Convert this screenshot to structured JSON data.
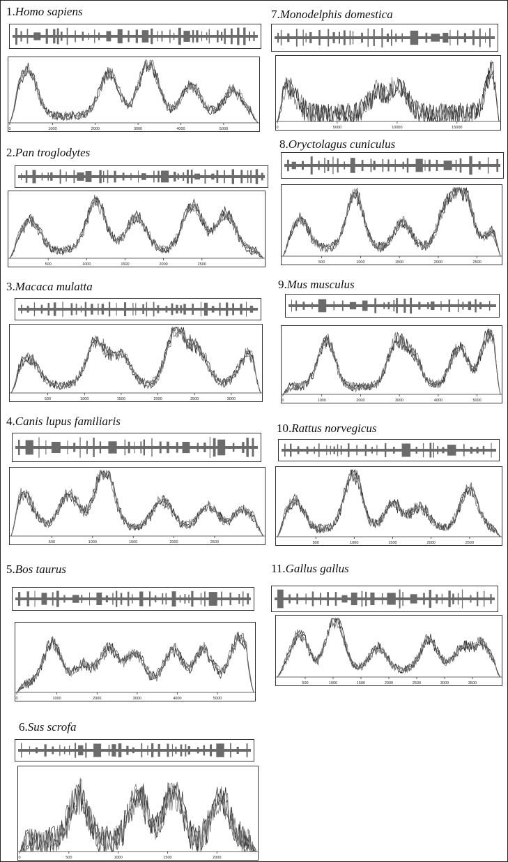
{
  "figure": {
    "panels": [
      {
        "number": "1.",
        "species": "Homo sapiens",
        "ticks": [
          "0",
          "1000",
          "2000",
          "3000",
          "4000",
          "5000"
        ]
      },
      {
        "number": "2.",
        "species": "Pan troglodytes",
        "ticks": [
          "500",
          "1000",
          "1500",
          "2000",
          "2500"
        ]
      },
      {
        "number": "3.",
        "species": "Macaca mulatta",
        "ticks": [
          "500",
          "1000",
          "1500",
          "2000",
          "2500",
          "3000"
        ]
      },
      {
        "number": "4.",
        "species": "Canis lupus familiaris",
        "ticks": [
          "500",
          "1000",
          "1500",
          "2000",
          "2500"
        ]
      },
      {
        "number": "5.",
        "species": "Bos taurus",
        "ticks": [
          "0",
          "1000",
          "2000",
          "3000",
          "4000",
          "5000"
        ]
      },
      {
        "number": "6.",
        "species": "Sus scrofa",
        "ticks": [
          "0",
          "500",
          "1000",
          "1500",
          "2000"
        ]
      },
      {
        "number": "7.",
        "species": "Monodelphis domestica",
        "ticks": [
          "0",
          "5000",
          "10000",
          "15000"
        ]
      },
      {
        "number": "8.",
        "species": "Oryctolagus cuniculus",
        "ticks": [
          "500",
          "1000",
          "1500",
          "2000",
          "2500"
        ]
      },
      {
        "number": "9.",
        "species": "Mus musculus",
        "ticks": [
          "0",
          "1000",
          "2000",
          "3000",
          "4000",
          "5000"
        ]
      },
      {
        "number": "10.",
        "species": "Rattus norvegicus",
        "ticks": [
          "500",
          "1000",
          "1500",
          "2000",
          "2500"
        ]
      },
      {
        "number": "11.",
        "species": "Gallus gallus",
        "ticks": [
          "500",
          "1000",
          "1500",
          "2000",
          "2500",
          "3000",
          "3500"
        ]
      }
    ]
  },
  "chart_data": {
    "type": "line",
    "grid": false,
    "colors": {
      "trace": "#333333",
      "bars": "#6b6b6b",
      "axis": "#333333"
    },
    "panels": [
      {
        "species": "Homo sapiens",
        "xlim": [
          0,
          5800
        ],
        "x_ticks": [
          0,
          1000,
          2000,
          3000,
          4000,
          5000
        ],
        "traces": 4,
        "profile_peaks": [
          [
            0.07,
            0.75
          ],
          [
            0.4,
            0.7
          ],
          [
            0.56,
            0.9
          ],
          [
            0.73,
            0.5
          ],
          [
            0.9,
            0.42
          ]
        ]
      },
      {
        "species": "Pan troglodytes",
        "xlim": [
          0,
          3300
        ],
        "x_ticks": [
          500,
          1000,
          1500,
          2000,
          2500
        ],
        "traces": 4,
        "profile_peaks": [
          [
            0.08,
            0.5
          ],
          [
            0.34,
            0.8
          ],
          [
            0.5,
            0.55
          ],
          [
            0.72,
            0.75
          ],
          [
            0.85,
            0.6
          ]
        ]
      },
      {
        "species": "Macaca mulatta",
        "xlim": [
          0,
          3400
        ],
        "x_ticks": [
          500,
          1000,
          1500,
          2000,
          2500,
          3000
        ],
        "traces": 4,
        "profile_peaks": [
          [
            0.07,
            0.45
          ],
          [
            0.34,
            0.7
          ],
          [
            0.44,
            0.5
          ],
          [
            0.66,
            0.85
          ],
          [
            0.75,
            0.55
          ],
          [
            0.95,
            0.5
          ]
        ]
      },
      {
        "species": "Canis lupus familiaris",
        "xlim": [
          0,
          3100
        ],
        "x_ticks": [
          500,
          1000,
          1500,
          2000,
          2500
        ],
        "traces": 4,
        "profile_peaks": [
          [
            0.05,
            0.55
          ],
          [
            0.23,
            0.55
          ],
          [
            0.37,
            0.95
          ],
          [
            0.6,
            0.45
          ],
          [
            0.78,
            0.35
          ],
          [
            0.92,
            0.3
          ]
        ]
      },
      {
        "species": "Bos taurus",
        "xlim": [
          0,
          5900
        ],
        "x_ticks": [
          0,
          1000,
          2000,
          3000,
          4000,
          5000
        ],
        "traces": 4,
        "profile_peaks": [
          [
            0.15,
            0.65
          ],
          [
            0.28,
            0.3
          ],
          [
            0.39,
            0.55
          ],
          [
            0.5,
            0.5
          ],
          [
            0.66,
            0.55
          ],
          [
            0.79,
            0.55
          ],
          [
            0.94,
            0.75
          ]
        ]
      },
      {
        "species": "Sus scrofa",
        "xlim": [
          0,
          2400
        ],
        "x_ticks": [
          0,
          500,
          1000,
          1500,
          2000
        ],
        "traces": 4,
        "profile_peaks": [
          [
            0.25,
            0.6
          ],
          [
            0.5,
            0.6
          ],
          [
            0.65,
            0.65
          ],
          [
            0.85,
            0.55
          ]
        ]
      },
      {
        "species": "Monodelphis domestica",
        "xlim": [
          0,
          18500
        ],
        "x_ticks": [
          0,
          5000,
          10000,
          15000
        ],
        "traces": 3,
        "profile_peaks": [
          [
            0.05,
            0.45
          ],
          [
            0.45,
            0.35
          ],
          [
            0.55,
            0.45
          ],
          [
            0.99,
            0.9
          ]
        ]
      },
      {
        "species": "Oryctolagus cuniculus",
        "xlim": [
          0,
          2800
        ],
        "x_ticks": [
          500,
          1000,
          1500,
          2000,
          2500
        ],
        "traces": 4,
        "profile_peaks": [
          [
            0.08,
            0.45
          ],
          [
            0.33,
            0.85
          ],
          [
            0.55,
            0.4
          ],
          [
            0.75,
            0.6
          ],
          [
            0.83,
            0.9
          ],
          [
            0.97,
            0.25
          ]
        ]
      },
      {
        "species": "Mus musculus",
        "xlim": [
          0,
          5600
        ],
        "x_ticks": [
          0,
          1000,
          2000,
          3000,
          4000,
          5000
        ],
        "traces": 4,
        "profile_peaks": [
          [
            0.2,
            0.75
          ],
          [
            0.52,
            0.7
          ],
          [
            0.6,
            0.45
          ],
          [
            0.81,
            0.65
          ],
          [
            0.95,
            0.85
          ]
        ]
      },
      {
        "species": "Rattus norvegicus",
        "xlim": [
          0,
          2900
        ],
        "x_ticks": [
          500,
          1000,
          1500,
          2000,
          2500
        ],
        "traces": 4,
        "profile_peaks": [
          [
            0.08,
            0.45
          ],
          [
            0.34,
            0.9
          ],
          [
            0.52,
            0.4
          ],
          [
            0.64,
            0.35
          ],
          [
            0.86,
            0.65
          ]
        ]
      },
      {
        "species": "Gallus gallus",
        "xlim": [
          0,
          4000
        ],
        "x_ticks": [
          500,
          1000,
          1500,
          2000,
          2500,
          3000,
          3500
        ],
        "traces": 4,
        "profile_peaks": [
          [
            0.1,
            0.65
          ],
          [
            0.26,
            0.95
          ],
          [
            0.45,
            0.4
          ],
          [
            0.68,
            0.55
          ],
          [
            0.83,
            0.4
          ],
          [
            0.92,
            0.45
          ]
        ]
      }
    ]
  }
}
